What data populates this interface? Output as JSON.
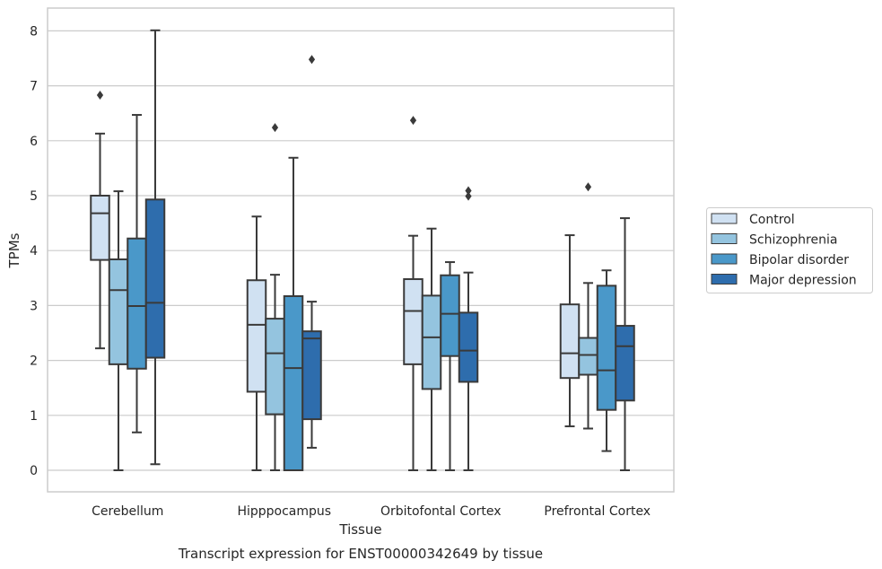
{
  "caption": "Transcript expression for ENST00000342649 by tissue",
  "chart_data": {
    "type": "box",
    "title": "",
    "xlabel": "Tissue",
    "ylabel": "TPMs",
    "ylim": [
      -0.38,
      8.42
    ],
    "yticks": [
      "0",
      "1",
      "2",
      "3",
      "4",
      "5",
      "6",
      "7",
      "8"
    ],
    "grid": "horizontal",
    "legend_position": "right",
    "categories": [
      "Cerebellum",
      "Hipppocampus",
      "Orbitofontal Cortex",
      "Prefrontal Cortex"
    ],
    "series": [
      {
        "name": "Control",
        "color": "#d0e1f2",
        "boxes": [
          {
            "whisker_low": 2.22,
            "q1": 3.83,
            "median": 4.68,
            "q3": 5.0,
            "whisker_high": 6.13,
            "outliers": [
              6.83
            ]
          },
          {
            "whisker_low": 0.0,
            "q1": 1.43,
            "median": 2.65,
            "q3": 3.46,
            "whisker_high": 4.62,
            "outliers": []
          },
          {
            "whisker_low": 0.0,
            "q1": 1.93,
            "median": 2.9,
            "q3": 3.48,
            "whisker_high": 4.27,
            "outliers": [
              6.37
            ]
          },
          {
            "whisker_low": 0.8,
            "q1": 1.68,
            "median": 2.13,
            "q3": 3.02,
            "whisker_high": 4.28,
            "outliers": []
          }
        ]
      },
      {
        "name": "Schizophrenia",
        "color": "#94c4df",
        "boxes": [
          {
            "whisker_low": 0.0,
            "q1": 1.93,
            "median": 3.28,
            "q3": 3.84,
            "whisker_high": 5.08,
            "outliers": []
          },
          {
            "whisker_low": 0.0,
            "q1": 1.02,
            "median": 2.13,
            "q3": 2.76,
            "whisker_high": 3.56,
            "outliers": [
              6.24
            ]
          },
          {
            "whisker_low": 0.0,
            "q1": 1.48,
            "median": 2.42,
            "q3": 3.18,
            "whisker_high": 4.4,
            "outliers": []
          },
          {
            "whisker_low": 0.76,
            "q1": 1.74,
            "median": 2.1,
            "q3": 2.41,
            "whisker_high": 3.41,
            "outliers": [
              5.16
            ]
          }
        ]
      },
      {
        "name": "Bipolar disorder",
        "color": "#4a98c9",
        "boxes": [
          {
            "whisker_low": 0.69,
            "q1": 1.85,
            "median": 2.99,
            "q3": 4.22,
            "whisker_high": 6.47,
            "outliers": []
          },
          {
            "whisker_low": 0.0,
            "q1": 0.0,
            "median": 1.86,
            "q3": 3.17,
            "whisker_high": 5.69,
            "outliers": []
          },
          {
            "whisker_low": 0.0,
            "q1": 2.08,
            "median": 2.85,
            "q3": 3.55,
            "whisker_high": 3.79,
            "outliers": []
          },
          {
            "whisker_low": 0.35,
            "q1": 1.1,
            "median": 1.82,
            "q3": 3.36,
            "whisker_high": 3.64,
            "outliers": []
          }
        ]
      },
      {
        "name": "Major depression",
        "color": "#2e6dad",
        "boxes": [
          {
            "whisker_low": 0.11,
            "q1": 2.05,
            "median": 3.05,
            "q3": 4.93,
            "whisker_high": 8.01,
            "outliers": []
          },
          {
            "whisker_low": 0.41,
            "q1": 0.93,
            "median": 2.4,
            "q3": 2.53,
            "whisker_high": 3.07,
            "outliers": [
              7.48
            ]
          },
          {
            "whisker_low": 0.0,
            "q1": 1.61,
            "median": 2.18,
            "q3": 2.87,
            "whisker_high": 3.6,
            "outliers": [
              4.99,
              5.09
            ]
          },
          {
            "whisker_low": 0.0,
            "q1": 1.27,
            "median": 2.26,
            "q3": 2.63,
            "whisker_high": 4.59,
            "outliers": []
          }
        ]
      }
    ]
  }
}
